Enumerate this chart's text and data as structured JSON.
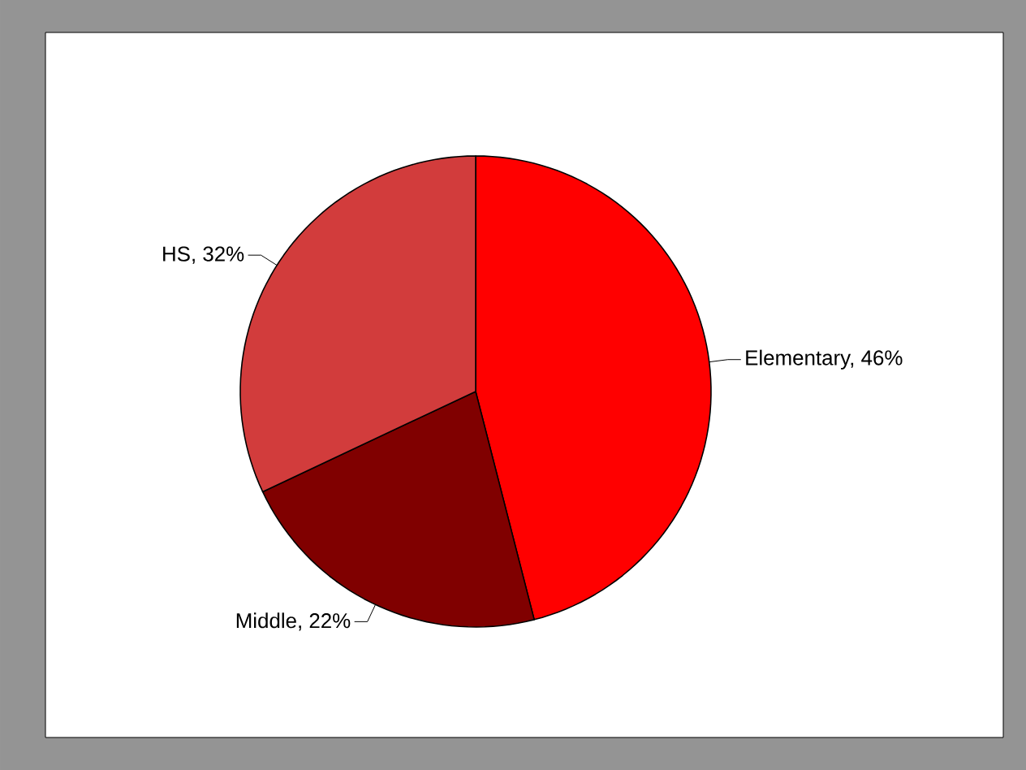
{
  "chart_data": {
    "type": "pie",
    "categories": [
      "Elementary, 46%",
      "Middle, 22%",
      "HS, 32%"
    ],
    "values": [
      46,
      22,
      32
    ],
    "colors": [
      "#ff0000",
      "#800000",
      "#d23c3c"
    ]
  }
}
